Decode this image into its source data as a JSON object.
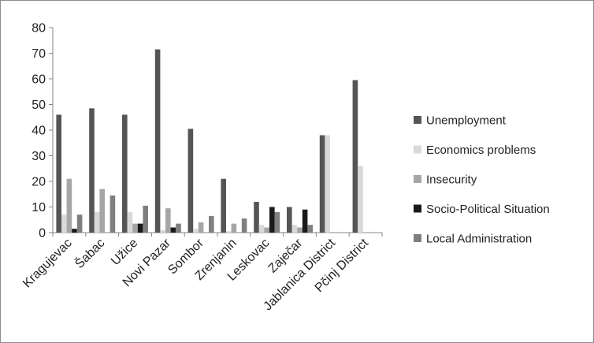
{
  "chart_data": {
    "type": "bar",
    "title": "",
    "xlabel": "",
    "ylabel": "",
    "ylim": [
      0,
      80
    ],
    "yticks": [
      0,
      10,
      20,
      30,
      40,
      50,
      60,
      70,
      80
    ],
    "grid": false,
    "legend_position": "right",
    "categories": [
      "Kragujevac",
      "Šabac",
      "Užice",
      "Novi Pazar",
      "Sombor",
      "Zrenjanin",
      "Leskovac",
      "Zaječar",
      "Jablanica District",
      "Pčinj District"
    ],
    "series": [
      {
        "name": "Unemployment",
        "color": "#555555",
        "values": [
          46,
          48.5,
          46,
          71.5,
          40.5,
          21,
          12,
          10,
          38,
          59.5
        ]
      },
      {
        "name": "Economics problems",
        "color": "#d9d9d9",
        "values": [
          7,
          8,
          8,
          1,
          1.5,
          0.5,
          3,
          3,
          38,
          26
        ]
      },
      {
        "name": "Insecurity",
        "color": "#a6a6a6",
        "values": [
          21,
          17,
          3.5,
          9.5,
          4,
          3.5,
          2,
          2,
          0,
          0
        ]
      },
      {
        "name": "Socio-Political Situation",
        "color": "#1a1a1a",
        "values": [
          1.5,
          0,
          3.5,
          2,
          0,
          0,
          10,
          9,
          0,
          0
        ]
      },
      {
        "name": "Local Administration",
        "color": "#7f7f7f",
        "values": [
          7,
          14.5,
          10.5,
          3.5,
          6.5,
          5.5,
          8,
          3,
          0,
          0
        ]
      }
    ]
  }
}
